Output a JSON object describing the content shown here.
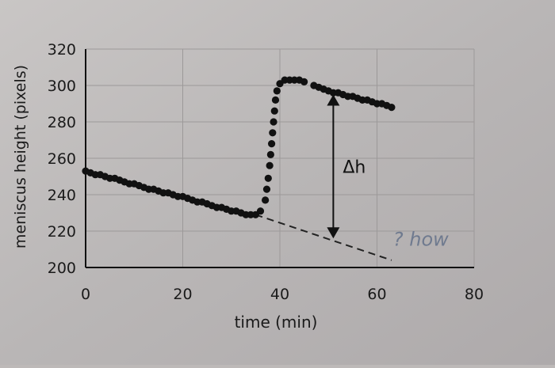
{
  "chart_data": {
    "type": "scatter",
    "xlabel": "time (min)",
    "ylabel": "meniscus height (pixels)",
    "xlim": [
      0,
      80
    ],
    "ylim": [
      200,
      320
    ],
    "x_ticks": [
      0,
      20,
      40,
      60,
      80
    ],
    "y_ticks": [
      200,
      220,
      240,
      260,
      280,
      300,
      320
    ],
    "grid": true,
    "series": [
      {
        "points": [
          [
            0,
            253
          ],
          [
            1,
            252
          ],
          [
            2,
            251
          ],
          [
            3,
            251
          ],
          [
            4,
            250
          ],
          [
            5,
            249
          ],
          [
            6,
            249
          ],
          [
            7,
            248
          ],
          [
            8,
            247
          ],
          [
            9,
            246
          ],
          [
            10,
            246
          ],
          [
            11,
            245
          ],
          [
            12,
            244
          ],
          [
            13,
            243
          ],
          [
            14,
            243
          ],
          [
            15,
            242
          ],
          [
            16,
            241
          ],
          [
            17,
            241
          ],
          [
            18,
            240
          ],
          [
            19,
            239
          ],
          [
            20,
            239
          ],
          [
            21,
            238
          ],
          [
            22,
            237
          ],
          [
            23,
            236
          ],
          [
            24,
            236
          ],
          [
            25,
            235
          ],
          [
            26,
            234
          ],
          [
            27,
            233
          ],
          [
            28,
            233
          ],
          [
            29,
            232
          ],
          [
            30,
            231
          ],
          [
            31,
            231
          ],
          [
            32,
            230
          ],
          [
            33,
            229
          ],
          [
            34,
            229
          ],
          [
            35,
            229
          ],
          [
            36,
            231
          ],
          [
            37.0,
            237
          ],
          [
            37.3,
            243
          ],
          [
            37.6,
            249
          ],
          [
            37.9,
            256
          ],
          [
            38.1,
            262
          ],
          [
            38.3,
            268
          ],
          [
            38.5,
            274
          ],
          [
            38.7,
            280
          ],
          [
            38.9,
            286
          ],
          [
            39.1,
            292
          ],
          [
            39.4,
            297
          ],
          [
            40,
            301
          ],
          [
            41,
            303
          ],
          [
            42,
            303
          ],
          [
            43,
            303
          ],
          [
            44,
            303
          ],
          [
            45,
            302
          ],
          [
            47,
            300
          ],
          [
            48,
            299
          ],
          [
            49,
            298
          ],
          [
            50,
            297
          ],
          [
            51,
            296
          ],
          [
            52,
            296
          ],
          [
            53,
            295
          ],
          [
            54,
            294
          ],
          [
            55,
            294
          ],
          [
            56,
            293
          ],
          [
            57,
            292
          ],
          [
            58,
            292
          ],
          [
            59,
            291
          ],
          [
            60,
            290
          ],
          [
            61,
            290
          ],
          [
            62,
            289
          ],
          [
            63,
            288
          ]
        ]
      }
    ],
    "baseline_extrapolation": {
      "style": "dashed",
      "points": [
        [
          35,
          229
        ],
        [
          63,
          204
        ]
      ]
    },
    "annotations": {
      "delta_label": "Δh",
      "delta_x": 51,
      "delta_from": 295,
      "delta_to": 216,
      "handwritten_note": "? how",
      "handwritten_note_x": 63,
      "handwritten_note_y": 212
    }
  }
}
